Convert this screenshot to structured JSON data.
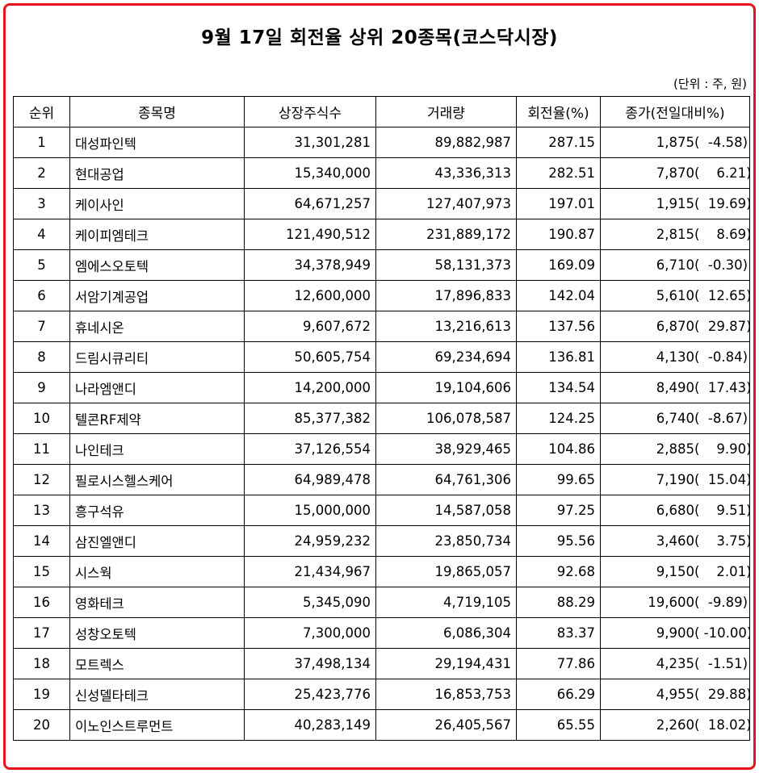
{
  "title": "9월 17일 회전율 상위 20종목(코스닥시장)",
  "unit_note": "(단위 : 주, 원)",
  "headers": {
    "rank": "순위",
    "name": "종목명",
    "listed_shares": "상장주식수",
    "volume": "거래량",
    "turnover": "회전율(%)",
    "close": "종가(전일대비%)"
  },
  "rows": [
    {
      "rank": "1",
      "name": "대성파인텍",
      "listed_shares": "31,301,281",
      "volume": "89,882,987",
      "turnover": "287.15",
      "close": "1,875",
      "change": "(  -4.58)"
    },
    {
      "rank": "2",
      "name": "현대공업",
      "listed_shares": "15,340,000",
      "volume": "43,336,313",
      "turnover": "282.51",
      "close": "7,870",
      "change": "(    6.21)"
    },
    {
      "rank": "3",
      "name": "케이사인",
      "listed_shares": "64,671,257",
      "volume": "127,407,973",
      "turnover": "197.01",
      "close": "1,915",
      "change": "(  19.69)"
    },
    {
      "rank": "4",
      "name": "케이피엠테크",
      "listed_shares": "121,490,512",
      "volume": "231,889,172",
      "turnover": "190.87",
      "close": "2,815",
      "change": "(    8.69)"
    },
    {
      "rank": "5",
      "name": "엠에스오토텍",
      "listed_shares": "34,378,949",
      "volume": "58,131,373",
      "turnover": "169.09",
      "close": "6,710",
      "change": "(  -0.30)"
    },
    {
      "rank": "6",
      "name": "서암기계공업",
      "listed_shares": "12,600,000",
      "volume": "17,896,833",
      "turnover": "142.04",
      "close": "5,610",
      "change": "(  12.65)"
    },
    {
      "rank": "7",
      "name": "휴네시온",
      "listed_shares": "9,607,672",
      "volume": "13,216,613",
      "turnover": "137.56",
      "close": "6,870",
      "change": "(  29.87)"
    },
    {
      "rank": "8",
      "name": "드림시큐리티",
      "listed_shares": "50,605,754",
      "volume": "69,234,694",
      "turnover": "136.81",
      "close": "4,130",
      "change": "(  -0.84)"
    },
    {
      "rank": "9",
      "name": "나라엠앤디",
      "listed_shares": "14,200,000",
      "volume": "19,104,606",
      "turnover": "134.54",
      "close": "8,490",
      "change": "(  17.43)"
    },
    {
      "rank": "10",
      "name": "텔콘RF제약",
      "listed_shares": "85,377,382",
      "volume": "106,078,587",
      "turnover": "124.25",
      "close": "6,740",
      "change": "(  -8.67)"
    },
    {
      "rank": "11",
      "name": "나인테크",
      "listed_shares": "37,126,554",
      "volume": "38,929,465",
      "turnover": "104.86",
      "close": "2,885",
      "change": "(    9.90)"
    },
    {
      "rank": "12",
      "name": "필로시스헬스케어",
      "listed_shares": "64,989,478",
      "volume": "64,761,306",
      "turnover": "99.65",
      "close": "7,190",
      "change": "(  15.04)"
    },
    {
      "rank": "13",
      "name": "흥구석유",
      "listed_shares": "15,000,000",
      "volume": "14,587,058",
      "turnover": "97.25",
      "close": "6,680",
      "change": "(    9.51)"
    },
    {
      "rank": "14",
      "name": "삼진엘앤디",
      "listed_shares": "24,959,232",
      "volume": "23,850,734",
      "turnover": "95.56",
      "close": "3,460",
      "change": "(    3.75)"
    },
    {
      "rank": "15",
      "name": "시스웍",
      "listed_shares": "21,434,967",
      "volume": "19,865,057",
      "turnover": "92.68",
      "close": "9,150",
      "change": "(    2.01)"
    },
    {
      "rank": "16",
      "name": "영화테크",
      "listed_shares": "5,345,090",
      "volume": "4,719,105",
      "turnover": "88.29",
      "close": "19,600",
      "change": "(  -9.89)"
    },
    {
      "rank": "17",
      "name": "성창오토텍",
      "listed_shares": "7,300,000",
      "volume": "6,086,304",
      "turnover": "83.37",
      "close": "9,900",
      "change": "( -10.00)"
    },
    {
      "rank": "18",
      "name": "모트렉스",
      "listed_shares": "37,498,134",
      "volume": "29,194,431",
      "turnover": "77.86",
      "close": "4,235",
      "change": "(  -1.51)"
    },
    {
      "rank": "19",
      "name": "신성델타테크",
      "listed_shares": "25,423,776",
      "volume": "16,853,753",
      "turnover": "66.29",
      "close": "4,955",
      "change": "(  29.88)"
    },
    {
      "rank": "20",
      "name": "이노인스트루먼트",
      "listed_shares": "40,283,149",
      "volume": "26,405,567",
      "turnover": "65.55",
      "close": "2,260",
      "change": "(  18.02)"
    }
  ],
  "colors": {
    "frame_border": "#e8141c",
    "grid_line": "#000000",
    "text": "#000000"
  }
}
